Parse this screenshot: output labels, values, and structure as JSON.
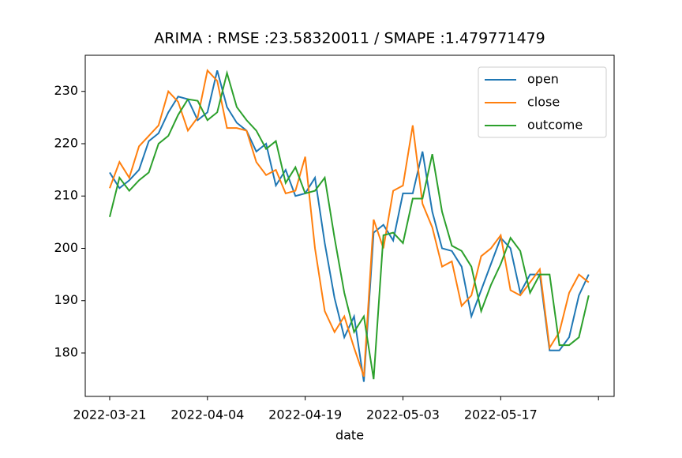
{
  "chart_data": {
    "type": "line",
    "title": "ARIMA : RMSE :23.58320011 / SMAPE :1.479771479",
    "x_label": "date",
    "categories": [
      "2022-03-21",
      null,
      null,
      null,
      null,
      null,
      null,
      null,
      null,
      null,
      "2022-04-04",
      null,
      null,
      null,
      null,
      null,
      null,
      null,
      null,
      null,
      "2022-04-19",
      null,
      null,
      null,
      null,
      null,
      null,
      null,
      null,
      null,
      "2022-05-03",
      null,
      null,
      null,
      null,
      null,
      null,
      null,
      null,
      null,
      "2022-05-17",
      null,
      null,
      null,
      null,
      null,
      null,
      null,
      null,
      null
    ],
    "series": [
      {
        "name": "open",
        "color": "#1f77b4",
        "values": [
          214.5,
          211.5,
          213,
          215,
          220.5,
          222,
          226,
          229,
          228.5,
          224.5,
          226,
          234,
          227,
          224,
          222.5,
          218.5,
          220,
          212,
          215,
          210,
          210.5,
          213.5,
          201,
          190.5,
          183,
          187,
          174.5,
          203,
          204.5,
          201.5,
          210.5,
          210.5,
          218.5,
          207,
          200,
          199.5,
          196.5,
          187,
          192,
          197,
          202,
          200,
          191.5,
          195,
          195,
          180.5,
          180.5,
          183,
          191,
          195
        ]
      },
      {
        "name": "close",
        "color": "#ff7f0e",
        "values": [
          211.5,
          216.5,
          213.5,
          219.5,
          221.5,
          223.5,
          230,
          228,
          222.5,
          225,
          234,
          232,
          223,
          223,
          222.5,
          216.5,
          214,
          215,
          210.5,
          211,
          217.5,
          200,
          188,
          184,
          187,
          181,
          175.5,
          205.5,
          200,
          211,
          212,
          223.5,
          208.5,
          204,
          196.5,
          197.5,
          189,
          191,
          198.5,
          200,
          202.5,
          192,
          191,
          193.5,
          196,
          181,
          184,
          191.5,
          195,
          193.5
        ]
      },
      {
        "name": "outcome",
        "color": "#2ca02c",
        "values": [
          206,
          213.5,
          211,
          213,
          214.5,
          220,
          221.5,
          225.5,
          228.5,
          228.2,
          224.5,
          226,
          233.5,
          227,
          224.5,
          222.5,
          219,
          220.5,
          212.5,
          215.5,
          210.5,
          211,
          213.5,
          202,
          191.5,
          184,
          187,
          175,
          202.5,
          203,
          201,
          209.5,
          209.5,
          218,
          207,
          200.5,
          199.5,
          196.5,
          188,
          193,
          197,
          202,
          199.5,
          191.5,
          195,
          195,
          181.5,
          181.5,
          183,
          191
        ]
      }
    ],
    "xlim": [
      -2.5,
      51.6
    ],
    "xticks": [
      0,
      10,
      20,
      30,
      40,
      50
    ],
    "ylim": [
      171.7,
      236.9
    ],
    "yticks": [
      180,
      190,
      200,
      210,
      220,
      230
    ],
    "legend": "upper right"
  }
}
